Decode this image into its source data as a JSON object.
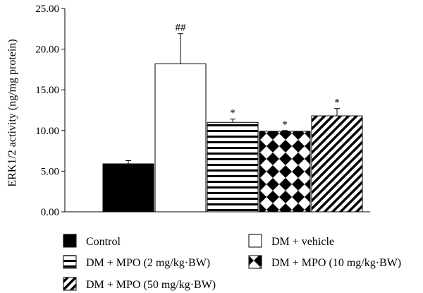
{
  "chart_data": {
    "type": "bar",
    "ylabel": "ERK1/2 activity (ng/mg protein)",
    "ylim": [
      0,
      25
    ],
    "yticks": [
      0,
      5,
      10,
      15,
      20,
      25
    ],
    "ytick_labels": [
      "0.00",
      "5.00",
      "10.00",
      "15.00",
      "20.00",
      "25.00"
    ],
    "grid": false,
    "legend": "bottom",
    "categories": [
      "Control",
      "DM + vehicle",
      "DM + MPO (2 mg/kg·BW)",
      "DM + MPO (10 mg/kg·BW)",
      "DM + MPO (50 mg/kg·BW)"
    ],
    "values": [
      5.9,
      18.2,
      11.0,
      9.9,
      11.8
    ],
    "errors": [
      0.4,
      3.7,
      0.4,
      0.1,
      0.9
    ],
    "significance": [
      "",
      "##",
      "*",
      "*",
      "*"
    ],
    "fills": [
      "solid",
      "white",
      "horizontal-stripes",
      "checker-diamond",
      "diagonal-stripes"
    ]
  }
}
